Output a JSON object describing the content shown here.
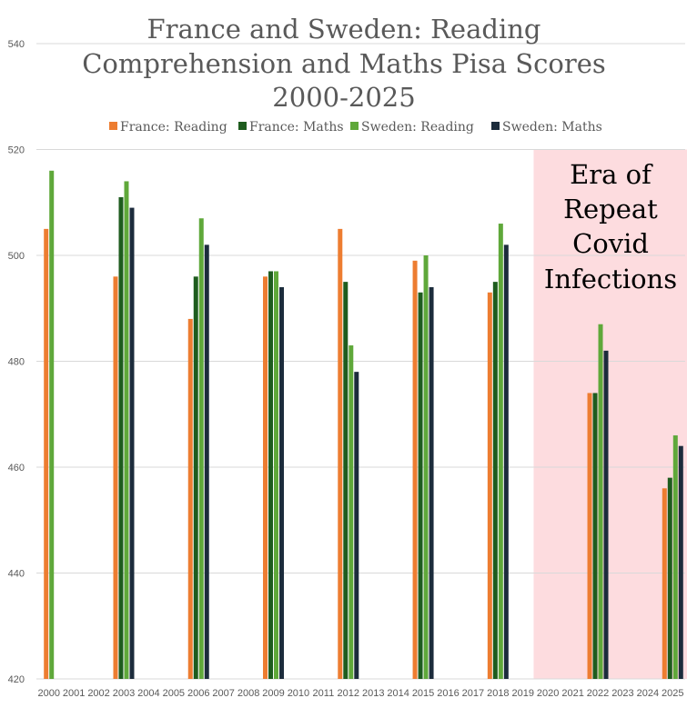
{
  "chart_data": {
    "type": "bar",
    "title_lines": [
      "France and Sweden: Reading",
      "Comprehension and Maths Pisa Scores",
      "2000-2025"
    ],
    "xlabel": "",
    "ylabel": "",
    "ylim": [
      420,
      540
    ],
    "yticks": [
      420,
      440,
      460,
      480,
      500,
      520,
      540
    ],
    "grid": true,
    "legend": "top",
    "categories": [
      "2000",
      "2001",
      "2002",
      "2003",
      "2004",
      "2005",
      "2006",
      "2007",
      "2008",
      "2009",
      "2010",
      "2011",
      "2012",
      "2013",
      "2014",
      "2015",
      "2016",
      "2017",
      "2018",
      "2019",
      "2020",
      "2021",
      "2022",
      "2023",
      "2024",
      "2025"
    ],
    "series": [
      {
        "name": "France: Reading",
        "color": "#ed7d31",
        "values": [
          505,
          null,
          null,
          496,
          null,
          null,
          488,
          null,
          null,
          496,
          null,
          null,
          505,
          null,
          null,
          499,
          null,
          null,
          493,
          null,
          null,
          null,
          474,
          null,
          null,
          456
        ]
      },
      {
        "name": "France: Maths",
        "color": "#1e5c1e",
        "values": [
          null,
          null,
          null,
          511,
          null,
          null,
          496,
          null,
          null,
          497,
          null,
          null,
          495,
          null,
          null,
          493,
          null,
          null,
          495,
          null,
          null,
          null,
          474,
          null,
          null,
          458
        ]
      },
      {
        "name": "Sweden: Reading",
        "color": "#5fa83a",
        "values": [
          516,
          null,
          null,
          514,
          null,
          null,
          507,
          null,
          null,
          497,
          null,
          null,
          483,
          null,
          null,
          500,
          null,
          null,
          506,
          null,
          null,
          null,
          487,
          null,
          null,
          466
        ]
      },
      {
        "name": "Sweden: Maths",
        "color": "#1c2c3c",
        "values": [
          null,
          null,
          null,
          509,
          null,
          null,
          502,
          null,
          null,
          494,
          null,
          null,
          478,
          null,
          null,
          494,
          null,
          null,
          502,
          null,
          null,
          null,
          482,
          null,
          null,
          464
        ]
      }
    ],
    "annotation": {
      "lines": [
        "Era of",
        "Repeat",
        "Covid",
        "Infections"
      ],
      "x_range": [
        "2020",
        "2025"
      ],
      "y_range": [
        420,
        520
      ],
      "color": "#fddcdf"
    }
  }
}
